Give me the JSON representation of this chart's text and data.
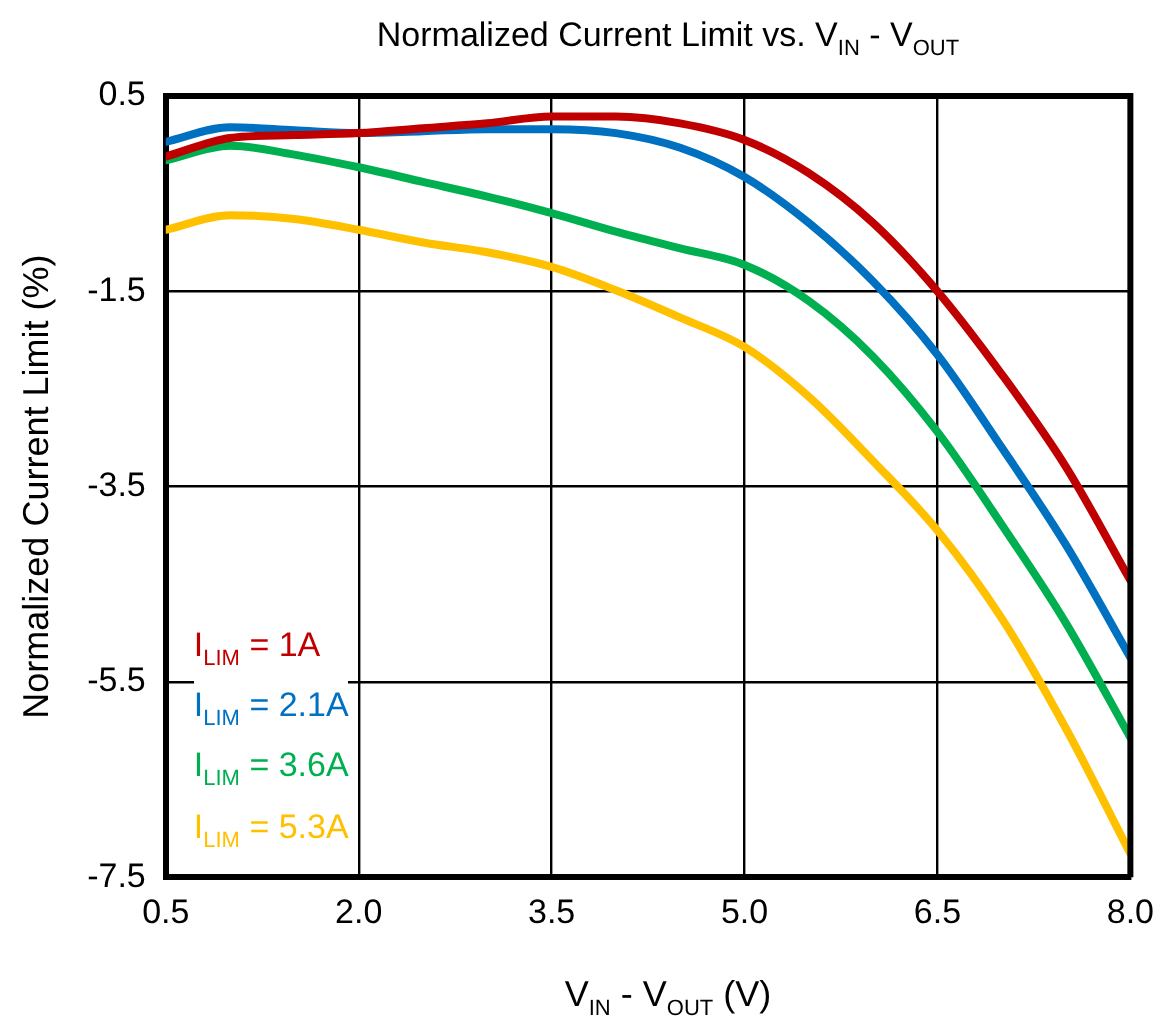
{
  "chart_data": {
    "type": "line",
    "title": "Normalized Current Limit vs. V$_{IN}$ - V$_{OUT}$",
    "xlabel": "V$_{IN}$ - V$_{OUT}$ (V)",
    "ylabel": "Normalized Current Limit (%)",
    "x": [
      0.5,
      1.0,
      1.5,
      2.0,
      2.5,
      3.0,
      3.5,
      4.0,
      4.5,
      5.0,
      5.5,
      6.0,
      6.5,
      7.0,
      7.5,
      8.0
    ],
    "series": [
      {
        "name": "I$_{LIM}$ = 1A",
        "color": "#c00000",
        "values": [
          -0.12,
          0.07,
          0.1,
          0.12,
          0.17,
          0.22,
          0.29,
          0.29,
          0.22,
          0.05,
          -0.29,
          -0.8,
          -1.5,
          -2.35,
          -3.3,
          -4.46
        ]
      },
      {
        "name": "I$_{LIM}$ = 2.1A",
        "color": "#0070c0",
        "values": [
          0.03,
          0.18,
          0.15,
          0.12,
          0.14,
          0.16,
          0.16,
          0.12,
          -0.03,
          -0.33,
          -0.8,
          -1.4,
          -2.15,
          -3.1,
          -4.1,
          -5.25
        ]
      },
      {
        "name": "I$_{LIM}$ = 3.6A",
        "color": "#00b050",
        "values": [
          -0.16,
          -0.01,
          -0.1,
          -0.23,
          -0.38,
          -0.53,
          -0.7,
          -0.89,
          -1.06,
          -1.23,
          -1.6,
          -2.17,
          -2.94,
          -3.89,
          -4.9,
          -6.07
        ]
      },
      {
        "name": "I$_{LIM}$ = 5.3A",
        "color": "#ffc000",
        "values": [
          -0.87,
          -0.72,
          -0.76,
          -0.87,
          -1.0,
          -1.1,
          -1.25,
          -1.49,
          -1.77,
          -2.07,
          -2.58,
          -3.24,
          -3.95,
          -4.85,
          -5.98,
          -7.26
        ]
      }
    ],
    "xlim": [
      0.5,
      8.0
    ],
    "xticks": [
      {
        "value": 0.5,
        "label": "0.5"
      },
      {
        "value": 2.0,
        "label": "2.0"
      },
      {
        "value": 3.5,
        "label": "3.5"
      },
      {
        "value": 5.0,
        "label": "5.0"
      },
      {
        "value": 6.5,
        "label": "6.5"
      },
      {
        "value": 8.0,
        "label": "8.0"
      }
    ],
    "ylim": [
      -7.5,
      0.5
    ],
    "yticks": [
      0.5,
      -1.5,
      -3.5,
      -5.5,
      -7.5
    ],
    "grid": true,
    "legend": "bottom left",
    "marker": "none",
    "line_style": "solid"
  }
}
